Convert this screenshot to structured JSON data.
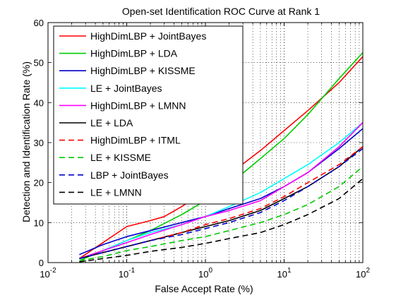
{
  "chart_data": {
    "type": "line",
    "title": "Open-set Identification ROC Curve at Rank 1",
    "xlabel": "False Accept Rate (%)",
    "ylabel": "Detection and Identification Rate (%)",
    "xscale": "log",
    "xlim": [
      0.01,
      100
    ],
    "ylim": [
      0,
      60
    ],
    "grid": true,
    "legend_position": "top-left",
    "x_ticks": [
      {
        "value": 0.01,
        "base": "10",
        "exp": "-2"
      },
      {
        "value": 0.1,
        "base": "10",
        "exp": "-1"
      },
      {
        "value": 1,
        "base": "10",
        "exp": "0"
      },
      {
        "value": 10,
        "base": "10",
        "exp": "1"
      },
      {
        "value": 100,
        "base": "10",
        "exp": "2"
      }
    ],
    "y_ticks": [
      {
        "value": 0,
        "label": "0"
      },
      {
        "value": 10,
        "label": "10"
      },
      {
        "value": 20,
        "label": "20"
      },
      {
        "value": 30,
        "label": "30"
      },
      {
        "value": 40,
        "label": "40"
      },
      {
        "value": 50,
        "label": "50"
      },
      {
        "value": 60,
        "label": "60"
      }
    ],
    "series": [
      {
        "name": "HighDimLBP + JointBayes",
        "color": "#ff0000",
        "dash": "solid",
        "x": [
          0.025,
          0.05,
          0.1,
          0.2,
          0.3,
          0.5,
          1,
          2,
          5,
          10,
          20,
          50,
          100
        ],
        "y": [
          1,
          5,
          9,
          10.5,
          11.5,
          14,
          18,
          22,
          28,
          33,
          38,
          45,
          51.5
        ]
      },
      {
        "name": "HighDimLBP + LDA",
        "color": "#00cc00",
        "dash": "solid",
        "x": [
          0.025,
          0.05,
          0.1,
          0.2,
          0.5,
          1,
          2,
          5,
          10,
          20,
          50,
          100
        ],
        "y": [
          0.5,
          3,
          5.5,
          8,
          12,
          15.5,
          19.5,
          26,
          31,
          37,
          46,
          52.5
        ]
      },
      {
        "name": "HighDimLBP + KISSME",
        "color": "#0000cc",
        "dash": "solid",
        "x": [
          0.025,
          0.05,
          0.1,
          0.2,
          0.5,
          1,
          2,
          5,
          10,
          20,
          50,
          100
        ],
        "y": [
          2,
          4.5,
          6.5,
          8,
          10,
          11.5,
          13.5,
          16,
          19,
          22.5,
          28.5,
          33.5
        ]
      },
      {
        "name": "LE + JointBayes",
        "color": "#00ffff",
        "dash": "solid",
        "x": [
          0.025,
          0.05,
          0.1,
          0.2,
          0.5,
          1,
          2,
          5,
          10,
          20,
          50,
          100
        ],
        "y": [
          1,
          3,
          5.5,
          7.5,
          9.5,
          11.5,
          14,
          17.5,
          21,
          24.5,
          30,
          35
        ]
      },
      {
        "name": "HighDimLBP + LMNN",
        "color": "#ff00ff",
        "dash": "solid",
        "x": [
          0.025,
          0.05,
          0.1,
          0.2,
          0.5,
          1,
          2,
          5,
          10,
          20,
          50,
          100
        ],
        "y": [
          1,
          3,
          5,
          7,
          9.5,
          11.5,
          13,
          15.5,
          19,
          22.5,
          29,
          35
        ]
      },
      {
        "name": "LE + LDA",
        "color": "#000000",
        "dash": "solid",
        "x": [
          0.025,
          0.05,
          0.1,
          0.2,
          0.5,
          1,
          2,
          5,
          10,
          20,
          50,
          100
        ],
        "y": [
          1,
          2.5,
          4,
          5.5,
          7.5,
          9,
          10.5,
          13,
          16,
          19,
          24,
          29
        ]
      },
      {
        "name": "HighDimLBP + ITML",
        "color": "#ff0000",
        "dash": "dashed",
        "x": [
          0.025,
          0.05,
          0.1,
          0.2,
          0.5,
          1,
          2,
          5,
          10,
          20,
          50,
          100
        ],
        "y": [
          1,
          2.5,
          4,
          5.5,
          7.5,
          9.5,
          11,
          13.5,
          16.5,
          20,
          24.5,
          29
        ]
      },
      {
        "name": "LE + KISSME",
        "color": "#00cc00",
        "dash": "dashed",
        "x": [
          0.025,
          0.05,
          0.1,
          0.2,
          0.5,
          1,
          2,
          5,
          10,
          20,
          50,
          100
        ],
        "y": [
          0.5,
          1.5,
          3,
          4,
          5.5,
          6.5,
          8,
          10,
          12,
          14.5,
          19,
          24
        ]
      },
      {
        "name": "LBP + JointBayes",
        "color": "#0000cc",
        "dash": "dashed",
        "x": [
          0.025,
          0.05,
          0.1,
          0.2,
          0.5,
          1,
          2,
          5,
          10,
          20,
          50,
          100
        ],
        "y": [
          1,
          2.5,
          4,
          5.5,
          7,
          8.5,
          10,
          12.5,
          15.5,
          19,
          24,
          28.5
        ]
      },
      {
        "name": "LE + LMNN",
        "color": "#000000",
        "dash": "dashed",
        "x": [
          0.025,
          0.05,
          0.1,
          0.2,
          0.5,
          1,
          2,
          5,
          10,
          20,
          50,
          100
        ],
        "y": [
          0.2,
          1,
          1.8,
          2.8,
          3.8,
          4.8,
          6,
          7.5,
          9.5,
          12,
          16,
          21
        ]
      }
    ]
  }
}
